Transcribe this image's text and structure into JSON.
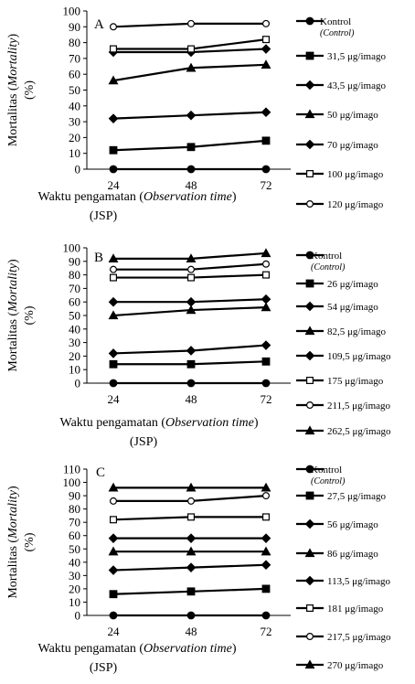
{
  "chart_data": [
    {
      "type": "line",
      "panel_label": "A",
      "xlabel_main": "Waktu pengamatan (",
      "xlabel_italic": "Observation time",
      "xlabel_tail": ")",
      "xlabel_line2": "(JSP)",
      "ylabel_main": "Mortalitas (",
      "ylabel_italic": "Mortality",
      "ylabel_tail": ")",
      "ylabel_line2": "(%)",
      "x": [
        "24",
        "48",
        "72"
      ],
      "ylim": [
        0,
        100
      ],
      "ytick_step": 10,
      "grid": false,
      "legend_position": "right",
      "series": [
        {
          "name": "Kontrol",
          "name_sub": "(Control)",
          "marker": "circle-filled",
          "values": [
            0,
            0,
            0
          ]
        },
        {
          "name": "31,5 μg/imago",
          "marker": "square-filled",
          "values": [
            12,
            14,
            18
          ]
        },
        {
          "name": "43,5 μg/imago",
          "marker": "diamond-filled",
          "values": [
            32,
            34,
            36
          ]
        },
        {
          "name": "50 μg/imago",
          "marker": "triangle-filled",
          "values": [
            56,
            64,
            66
          ]
        },
        {
          "name": "70 μg/imago",
          "marker": "diamond-filled",
          "values": [
            74,
            74,
            76
          ]
        },
        {
          "name": "100 μg/imago",
          "marker": "square-open",
          "values": [
            76,
            76,
            82
          ]
        },
        {
          "name": "120 μg/imago",
          "marker": "circle-open",
          "values": [
            90,
            92,
            92
          ]
        }
      ]
    },
    {
      "type": "line",
      "panel_label": "B",
      "xlabel_main": "Waktu pengamatan (",
      "xlabel_italic": "Observation time",
      "xlabel_tail": ")",
      "xlabel_line2": "(JSP)",
      "ylabel_main": "Mortalitas (",
      "ylabel_italic": "Mortality",
      "ylabel_tail": ")",
      "ylabel_line2": "(%)",
      "x": [
        "24",
        "48",
        "72"
      ],
      "ylim": [
        0,
        100
      ],
      "ytick_step": 10,
      "grid": false,
      "legend_position": "right",
      "series": [
        {
          "name": "Kontrol",
          "name_sub": "(Control)",
          "marker": "circle-filled",
          "values": [
            0,
            0,
            0
          ]
        },
        {
          "name": "26 μg/imago",
          "marker": "square-filled",
          "values": [
            14,
            14,
            16
          ]
        },
        {
          "name": "54 μg/imago",
          "marker": "diamond-filled",
          "values": [
            22,
            24,
            28
          ]
        },
        {
          "name": "82,5 μg/imago",
          "marker": "triangle-filled",
          "values": [
            50,
            54,
            56
          ]
        },
        {
          "name": "109,5 μg/imago",
          "marker": "diamond-filled",
          "values": [
            60,
            60,
            62
          ]
        },
        {
          "name": "175 μg/imago",
          "marker": "square-open",
          "values": [
            78,
            78,
            80
          ]
        },
        {
          "name": "211,5 μg/imago",
          "marker": "circle-open",
          "values": [
            84,
            84,
            88
          ]
        },
        {
          "name": "262,5 μg/imago",
          "marker": "triangle-filled",
          "values": [
            92,
            92,
            96
          ]
        }
      ]
    },
    {
      "type": "line",
      "panel_label": "C",
      "xlabel_main": "Waktu pengamatan (",
      "xlabel_italic": "Observation time",
      "xlabel_tail": ")",
      "xlabel_line2": "(JSP)",
      "ylabel_main": "Mortalitas (",
      "ylabel_italic": "Mortality",
      "ylabel_tail": ")",
      "ylabel_line2": "(%)",
      "x": [
        "24",
        "48",
        "72"
      ],
      "ylim": [
        0,
        110
      ],
      "ytick_step": 10,
      "grid": false,
      "legend_position": "right",
      "series": [
        {
          "name": "Kontrol",
          "name_sub": "(Control)",
          "marker": "circle-filled",
          "values": [
            0,
            0,
            0
          ]
        },
        {
          "name": "27,5 μg/imago",
          "marker": "square-filled",
          "values": [
            16,
            18,
            20
          ]
        },
        {
          "name": "56 μg/imago",
          "marker": "diamond-filled",
          "values": [
            34,
            36,
            38
          ]
        },
        {
          "name": "86 μg/imago",
          "marker": "triangle-filled",
          "values": [
            48,
            48,
            48
          ]
        },
        {
          "name": "113,5 μg/imago",
          "marker": "diamond-filled",
          "values": [
            58,
            58,
            58
          ]
        },
        {
          "name": "181 μg/imago",
          "marker": "square-open",
          "values": [
            72,
            74,
            74
          ]
        },
        {
          "name": "217,5 μg/imago",
          "marker": "circle-open",
          "values": [
            86,
            86,
            90
          ]
        },
        {
          "name": "270 μg/imago",
          "marker": "triangle-filled",
          "values": [
            96,
            96,
            96
          ]
        }
      ]
    }
  ]
}
